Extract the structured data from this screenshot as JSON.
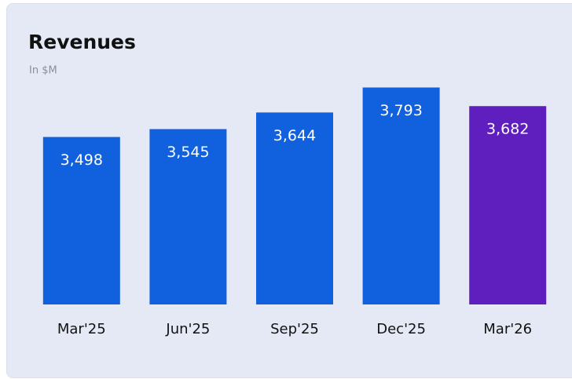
{
  "chart_data": {
    "type": "bar",
    "title": "Revenues",
    "subtitle": "In $M",
    "categories": [
      "Mar'25",
      "Jun'25",
      "Sep'25",
      "Dec'25",
      "Mar'26"
    ],
    "values": [
      3498,
      3545,
      3644,
      3793,
      3682
    ],
    "value_labels": [
      "3,498",
      "3,545",
      "3,644",
      "3,793",
      "3,682"
    ],
    "colors": [
      "#1160de",
      "#1160de",
      "#1160de",
      "#1160de",
      "#5f1fbf"
    ],
    "ylim": [
      2500,
      3800
    ]
  }
}
